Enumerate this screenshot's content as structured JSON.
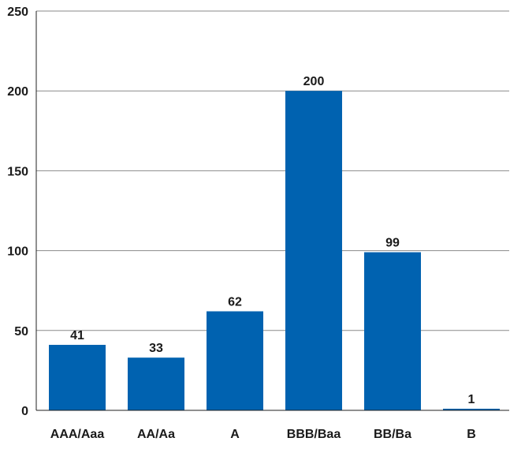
{
  "chart_data": {
    "type": "bar",
    "categories": [
      "AAA/Aaa",
      "AA/Aa",
      "A",
      "BBB/Baa",
      "BB/Ba",
      "B"
    ],
    "values": [
      41,
      33,
      62,
      200,
      99,
      1
    ],
    "data_labels": [
      "41",
      "33",
      "62",
      "200",
      "99",
      "1"
    ],
    "y_ticks": [
      0,
      50,
      100,
      150,
      200,
      250
    ],
    "ylim": [
      0,
      250
    ],
    "grid": "horizontal",
    "legend": "none",
    "bar_color": "#0062b0",
    "grid_color": "#8a8a8a",
    "axis_color": "#222222"
  }
}
